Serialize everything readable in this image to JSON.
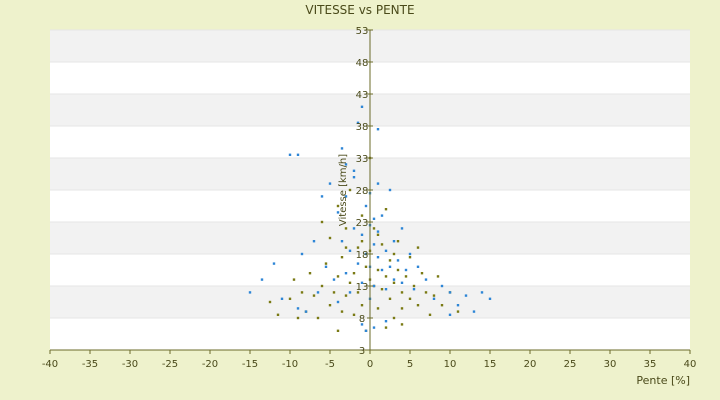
{
  "chart_data": {
    "type": "scatter",
    "title": "VITESSE vs PENTE",
    "xlabel": "Pente [%]",
    "ylabel": "Vitesse [km/h]",
    "xlim": [
      -40,
      40
    ],
    "ylim": [
      3,
      53
    ],
    "x_ticks": [
      -40,
      -35,
      -30,
      -25,
      -20,
      -15,
      -10,
      -5,
      0,
      5,
      10,
      15,
      20,
      25,
      30,
      35,
      40
    ],
    "y_ticks": [
      3,
      8,
      13,
      18,
      23,
      28,
      33,
      38,
      43,
      48,
      53
    ],
    "grid": "horizontal alternating bands",
    "legend": "none",
    "series": [
      {
        "color": "#7a7a14",
        "points": [
          [
            -12.5,
            10.5
          ],
          [
            -11.5,
            8.5
          ],
          [
            -10,
            11
          ],
          [
            -9.5,
            14
          ],
          [
            -8.5,
            12
          ],
          [
            -8,
            9
          ],
          [
            -7.5,
            15
          ],
          [
            -7,
            11.5
          ],
          [
            -6.5,
            8
          ],
          [
            -6,
            13
          ],
          [
            -5.5,
            16.5
          ],
          [
            -5,
            10
          ],
          [
            -5,
            20.5
          ],
          [
            -4.5,
            12
          ],
          [
            -4,
            25.5
          ],
          [
            -4,
            14.5
          ],
          [
            -3.5,
            9
          ],
          [
            -3.5,
            17.5
          ],
          [
            -3,
            11.5
          ],
          [
            -3,
            22
          ],
          [
            -2.5,
            13.5
          ],
          [
            -2.5,
            28
          ],
          [
            -2,
            15
          ],
          [
            -2,
            8.5
          ],
          [
            -1.5,
            19
          ],
          [
            -1.5,
            12
          ],
          [
            -1,
            24
          ],
          [
            -1,
            10
          ],
          [
            -0.5,
            16
          ],
          [
            -0.5,
            6
          ],
          [
            0,
            18.5
          ],
          [
            0,
            14
          ],
          [
            0,
            33
          ],
          [
            0.5,
            13
          ],
          [
            0.5,
            22
          ],
          [
            1,
            15.5
          ],
          [
            1,
            9.5
          ],
          [
            1.5,
            19.5
          ],
          [
            1.5,
            12.5
          ],
          [
            2,
            25
          ],
          [
            2,
            14.5
          ],
          [
            2.5,
            11
          ],
          [
            2.5,
            17
          ],
          [
            3,
            13.5
          ],
          [
            3,
            8
          ],
          [
            3.5,
            15.5
          ],
          [
            3.5,
            20
          ],
          [
            4,
            12
          ],
          [
            4,
            9.5
          ],
          [
            4.5,
            14.5
          ],
          [
            5,
            11
          ],
          [
            5,
            17.5
          ],
          [
            5.5,
            13
          ],
          [
            6,
            10
          ],
          [
            6.5,
            15
          ],
          [
            7,
            12
          ],
          [
            7.5,
            8.5
          ],
          [
            8,
            11.5
          ],
          [
            8.5,
            14.5
          ],
          [
            9,
            10
          ],
          [
            10,
            12
          ],
          [
            11,
            9
          ],
          [
            -6,
            23
          ],
          [
            -3,
            19
          ],
          [
            -1,
            20
          ],
          [
            1,
            21
          ],
          [
            3,
            18
          ],
          [
            6,
            19
          ],
          [
            -9,
            8
          ],
          [
            -4,
            6
          ],
          [
            2,
            6.5
          ],
          [
            4,
            7
          ]
        ]
      },
      {
        "color": "#2e86d6",
        "points": [
          [
            -15,
            12
          ],
          [
            -13.5,
            14
          ],
          [
            -12,
            16.5
          ],
          [
            -11,
            11
          ],
          [
            -10,
            33.5
          ],
          [
            -9,
            33.5
          ],
          [
            -8.5,
            18
          ],
          [
            -8,
            9
          ],
          [
            -7,
            20
          ],
          [
            -6.5,
            12
          ],
          [
            -6,
            27
          ],
          [
            -5.5,
            16
          ],
          [
            -5,
            29
          ],
          [
            -4.5,
            14
          ],
          [
            -4,
            24.5
          ],
          [
            -4,
            10.5
          ],
          [
            -3.5,
            20
          ],
          [
            -3.5,
            34.5
          ],
          [
            -3,
            15
          ],
          [
            -3,
            27
          ],
          [
            -2.5,
            18.5
          ],
          [
            -2.5,
            12
          ],
          [
            -2,
            22
          ],
          [
            -2,
            31
          ],
          [
            -1.5,
            16.5
          ],
          [
            -1.5,
            38.5
          ],
          [
            -1,
            21
          ],
          [
            -1,
            41
          ],
          [
            -1,
            13.5
          ],
          [
            -0.5,
            25.5
          ],
          [
            -0.5,
            18
          ],
          [
            -0.5,
            6
          ],
          [
            0,
            22.5
          ],
          [
            0,
            16
          ],
          [
            0,
            27.5
          ],
          [
            0,
            11
          ],
          [
            0.5,
            19.5
          ],
          [
            0.5,
            23.5
          ],
          [
            0.5,
            13
          ],
          [
            1,
            21.5
          ],
          [
            1,
            17.5
          ],
          [
            1,
            37.5
          ],
          [
            1.5,
            15.5
          ],
          [
            1.5,
            24
          ],
          [
            2,
            18.5
          ],
          [
            2,
            12.5
          ],
          [
            2.5,
            28
          ],
          [
            2.5,
            16
          ],
          [
            3,
            20
          ],
          [
            3,
            14
          ],
          [
            3.5,
            17
          ],
          [
            4,
            13.5
          ],
          [
            4,
            22
          ],
          [
            4.5,
            15.5
          ],
          [
            5,
            18
          ],
          [
            5.5,
            12.5
          ],
          [
            6,
            16
          ],
          [
            7,
            14
          ],
          [
            8,
            11
          ],
          [
            9,
            13
          ],
          [
            10,
            12
          ],
          [
            11,
            10
          ],
          [
            12,
            11.5
          ],
          [
            13,
            9
          ],
          [
            14,
            12
          ],
          [
            15,
            11
          ],
          [
            -2,
            30
          ],
          [
            1,
            29
          ],
          [
            -3,
            32
          ],
          [
            2,
            7.5
          ],
          [
            -1,
            7
          ],
          [
            0.5,
            6.5
          ],
          [
            -9,
            9.5
          ],
          [
            10,
            8.5
          ]
        ]
      }
    ]
  }
}
